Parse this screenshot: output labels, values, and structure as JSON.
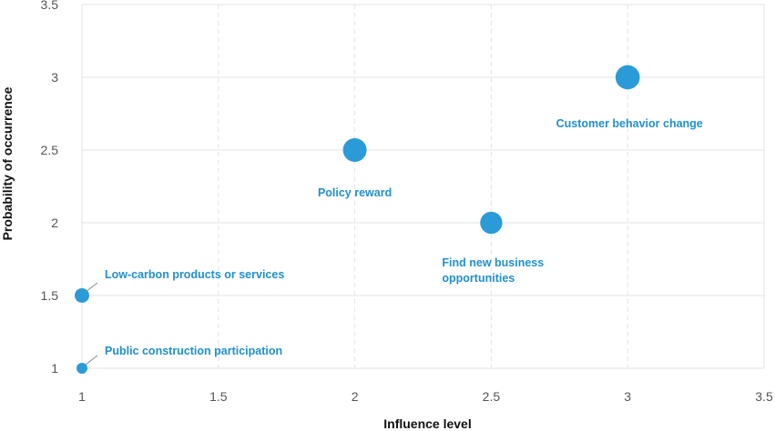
{
  "chart_data": {
    "type": "scatter",
    "title": "",
    "xlabel": "Influence level",
    "ylabel": "Probability of occurrence",
    "xlim": [
      1,
      3.5
    ],
    "ylim": [
      1,
      3.5
    ],
    "xticks": [
      "1",
      "1.5",
      "2",
      "2.5",
      "3",
      "3.5"
    ],
    "yticks": [
      "1",
      "1.5",
      "2",
      "2.5",
      "3",
      "3.5"
    ],
    "x_grid": "dashed vertical",
    "y_grid": "solid horizontal",
    "series": [
      {
        "color": "#2a9bd7",
        "points": [
          {
            "label": "Public construction participation",
            "x": 1,
            "y": 1,
            "size": 1
          },
          {
            "label": "Low-carbon products or services",
            "x": 1,
            "y": 1.5,
            "size": 1.5
          },
          {
            "label": "Policy reward",
            "x": 2,
            "y": 2.5,
            "size": 4
          },
          {
            "label": "Find new business opportunities",
            "x": 2.5,
            "y": 2,
            "size": 3.5
          },
          {
            "label": "Customer behavior change",
            "x": 3,
            "y": 3,
            "size": 4.2
          }
        ]
      }
    ],
    "label_color": "#1f8fcf"
  }
}
